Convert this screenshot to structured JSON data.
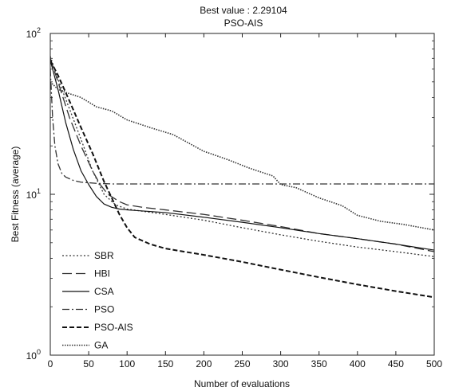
{
  "chart_data": {
    "type": "line",
    "title": "Best value : 2.29104",
    "subtitle": "PSO-AIS",
    "xlabel": "Number of evaluations",
    "ylabel": "Best Fitness (average)",
    "xlim": [
      0,
      500
    ],
    "ylim": [
      1,
      100
    ],
    "yscale": "log",
    "x_ticks": [
      "0",
      "50",
      "100",
      "150",
      "200",
      "250",
      "300",
      "350",
      "400",
      "450",
      "500"
    ],
    "y_ticks": [
      {
        "base": "10",
        "exp": "0",
        "value": 1
      },
      {
        "base": "10",
        "exp": "1",
        "value": 10
      },
      {
        "base": "10",
        "exp": "2",
        "value": 100
      }
    ],
    "grid": false,
    "legend_position": "bottom-left",
    "series": [
      {
        "name": "SBR",
        "style": "dotted",
        "color": "#333333",
        "x": [
          0,
          10,
          25,
          40,
          55,
          70,
          85,
          100,
          150,
          200,
          250,
          300,
          350,
          400,
          450,
          500
        ],
        "y": [
          72,
          52,
          34,
          22,
          14,
          10,
          8.6,
          8.1,
          7.5,
          6.9,
          6.2,
          5.6,
          5.1,
          4.7,
          4.4,
          4.1
        ]
      },
      {
        "name": "HBI",
        "style": "long-dash",
        "color": "#333333",
        "x": [
          0,
          10,
          25,
          40,
          55,
          65,
          75,
          90,
          100,
          120,
          150,
          200,
          250,
          300,
          350,
          400,
          450,
          500
        ],
        "y": [
          70,
          50,
          30,
          20,
          14,
          11.5,
          10,
          9,
          8.6,
          8.3,
          8,
          7.5,
          6.9,
          6.3,
          5.7,
          5.3,
          4.9,
          4.4
        ]
      },
      {
        "name": "CSA",
        "style": "solid",
        "color": "#111111",
        "x": [
          0,
          10,
          20,
          30,
          40,
          50,
          60,
          70,
          80,
          90,
          100,
          150,
          200,
          250,
          300,
          350,
          400,
          450,
          500
        ],
        "y": [
          68,
          45,
          28,
          19,
          14,
          11.5,
          9.7,
          8.7,
          8.3,
          8.1,
          8,
          7.7,
          7.2,
          6.7,
          6.2,
          5.7,
          5.3,
          4.9,
          4.5
        ]
      },
      {
        "name": "PSO",
        "style": "dash-dot",
        "color": "#333333",
        "x": [
          0,
          3,
          6,
          10,
          15,
          20,
          30,
          40,
          50,
          60,
          80,
          100,
          200,
          300,
          400,
          500
        ],
        "y": [
          60,
          30,
          20,
          15.5,
          13.5,
          12.8,
          12.2,
          11.9,
          11.8,
          11.7,
          11.6,
          11.6,
          11.6,
          11.6,
          11.6,
          11.6
        ]
      },
      {
        "name": "PSO-AIS",
        "style": "dashed",
        "color": "#111111",
        "x": [
          0,
          10,
          25,
          40,
          55,
          70,
          80,
          90,
          100,
          110,
          130,
          150,
          200,
          250,
          300,
          350,
          400,
          450,
          500
        ],
        "y": [
          68,
          55,
          38,
          26,
          18,
          12,
          9.5,
          7.5,
          6.2,
          5.4,
          4.9,
          4.6,
          4.2,
          3.8,
          3.4,
          3.05,
          2.75,
          2.5,
          2.29
        ]
      },
      {
        "name": "GA",
        "style": "dense-dotted",
        "color": "#333333",
        "x": [
          0,
          10,
          20,
          40,
          60,
          80,
          100,
          130,
          160,
          200,
          230,
          260,
          290,
          300,
          320,
          350,
          380,
          400,
          430,
          460,
          500
        ],
        "y": [
          50,
          45,
          43,
          40,
          35,
          33,
          29,
          26,
          23.5,
          18.5,
          16.5,
          14.5,
          13,
          11.5,
          11,
          9.5,
          8.5,
          7.4,
          6.8,
          6.5,
          6
        ]
      }
    ]
  }
}
